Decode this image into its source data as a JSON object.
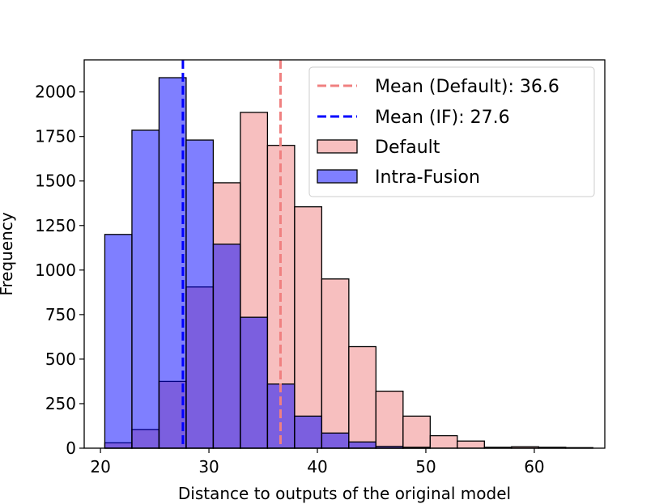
{
  "chart_data": {
    "type": "histogram",
    "title": "",
    "xlabel": "Distance to outputs of the original model",
    "ylabel": "Frequency",
    "xlim": [
      18.5,
      66.5
    ],
    "ylim": [
      0,
      2180
    ],
    "xticks": [
      20,
      30,
      40,
      50,
      60
    ],
    "yticks": [
      0,
      250,
      500,
      750,
      1000,
      1250,
      1500,
      1750,
      2000
    ],
    "grid": false,
    "legend_position": "top-right",
    "series": [
      {
        "name": "Default",
        "color": "#f08080",
        "fill_opacity": 0.5,
        "edgecolor": "#000000",
        "bins": [
          {
            "x0": 20.4,
            "x1": 22.9,
            "value": 30
          },
          {
            "x0": 22.9,
            "x1": 25.4,
            "value": 105
          },
          {
            "x0": 25.4,
            "x1": 27.9,
            "value": 375
          },
          {
            "x0": 27.9,
            "x1": 30.4,
            "value": 905
          },
          {
            "x0": 30.4,
            "x1": 32.9,
            "value": 1490
          },
          {
            "x0": 32.9,
            "x1": 35.4,
            "value": 1885
          },
          {
            "x0": 35.4,
            "x1": 37.9,
            "value": 1700
          },
          {
            "x0": 37.9,
            "x1": 40.4,
            "value": 1355
          },
          {
            "x0": 40.4,
            "x1": 42.9,
            "value": 950
          },
          {
            "x0": 42.9,
            "x1": 45.4,
            "value": 570
          },
          {
            "x0": 45.4,
            "x1": 47.9,
            "value": 320
          },
          {
            "x0": 47.9,
            "x1": 50.4,
            "value": 180
          },
          {
            "x0": 50.4,
            "x1": 52.9,
            "value": 70
          },
          {
            "x0": 52.9,
            "x1": 55.4,
            "value": 40
          },
          {
            "x0": 55.4,
            "x1": 57.9,
            "value": 5
          },
          {
            "x0": 57.9,
            "x1": 60.4,
            "value": 8
          },
          {
            "x0": 60.4,
            "x1": 62.9,
            "value": 5
          },
          {
            "x0": 62.9,
            "x1": 65.4,
            "value": 3
          }
        ]
      },
      {
        "name": "Intra-Fusion",
        "color": "#0000ff",
        "fill_opacity": 0.5,
        "edgecolor": "#000000",
        "bins": [
          {
            "x0": 20.4,
            "x1": 22.9,
            "value": 1200
          },
          {
            "x0": 22.9,
            "x1": 25.4,
            "value": 1785
          },
          {
            "x0": 25.4,
            "x1": 27.9,
            "value": 2080
          },
          {
            "x0": 27.9,
            "x1": 30.4,
            "value": 1730
          },
          {
            "x0": 30.4,
            "x1": 32.9,
            "value": 1145
          },
          {
            "x0": 32.9,
            "x1": 35.4,
            "value": 735
          },
          {
            "x0": 35.4,
            "x1": 37.9,
            "value": 360
          },
          {
            "x0": 37.9,
            "x1": 40.4,
            "value": 180
          },
          {
            "x0": 40.4,
            "x1": 42.9,
            "value": 85
          },
          {
            "x0": 42.9,
            "x1": 45.4,
            "value": 35
          },
          {
            "x0": 45.4,
            "x1": 47.9,
            "value": 10
          },
          {
            "x0": 47.9,
            "x1": 50.4,
            "value": 5
          }
        ]
      }
    ],
    "mean_lines": [
      {
        "name": "Mean (Default): 36.6",
        "x": 36.6,
        "color": "#f08080",
        "style": "dashed"
      },
      {
        "name": "Mean (IF): 27.6",
        "x": 27.6,
        "color": "#0000ff",
        "style": "dashed"
      }
    ]
  }
}
